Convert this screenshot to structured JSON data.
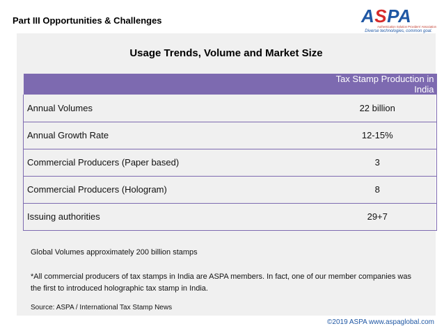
{
  "header": {
    "section_label": "Part III Opportunities & Challenges"
  },
  "logo": {
    "word_prefix": "A",
    "word_accent": "S",
    "word_suffix": "PA",
    "subtitle": "Authentication Solution Providers' Association",
    "tagline": "Diverse technologies, common goal.",
    "brand_color": "#1f57a4",
    "accent_color": "#d62b2b"
  },
  "main": {
    "title": "Usage Trends, Volume and Market Size",
    "table": {
      "header_label": "",
      "header_value": "Tax Stamp Production in India",
      "header_color": "#7d6ab0",
      "rows": [
        {
          "label": "Annual Volumes",
          "value": "22 billion"
        },
        {
          "label": "Annual Growth Rate",
          "value": "12-15%"
        },
        {
          "label": "Commercial Producers (Paper based)",
          "value": "3"
        },
        {
          "label": "Commercial Producers (Hologram)",
          "value": "8"
        },
        {
          "label": "Issuing authorities",
          "value": "29+7"
        }
      ]
    },
    "notes": {
      "global_volumes": "Global Volumes approximately 200 billion stamps",
      "members": "*All commercial producers of tax stamps in India are ASPA members. In fact, one of our member companies was the first to introduced holographic tax stamp in India.",
      "source": "Source: ASPA / International Tax Stamp News"
    }
  },
  "footer": {
    "copyright": "©2019 ASPA www.aspaglobal.com"
  }
}
